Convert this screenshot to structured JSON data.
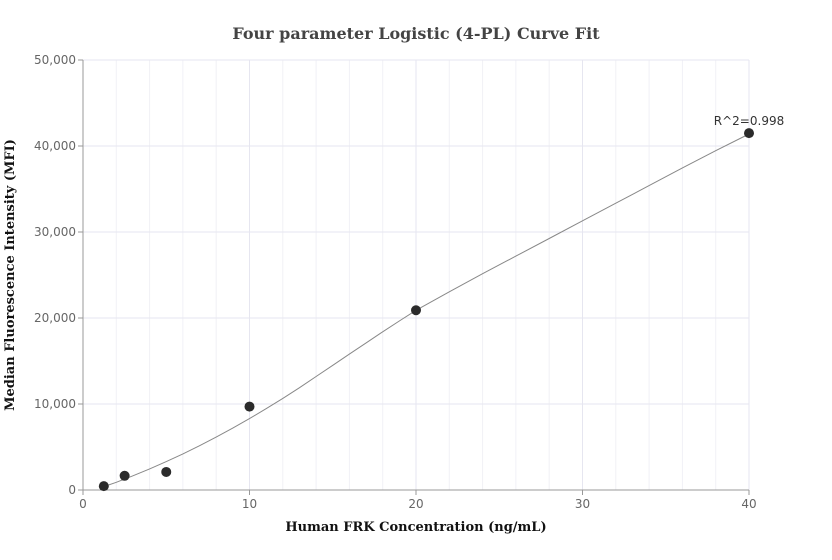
{
  "chart_data": {
    "type": "scatter",
    "title": "Four parameter Logistic (4-PL) Curve Fit",
    "xlabel": "Human FRK Concentration (ng/mL)",
    "ylabel": "Median Fluorescence Intensity (MFI)",
    "xlim": [
      0,
      40
    ],
    "ylim": [
      0,
      50000
    ],
    "x_ticks": [
      0,
      10,
      20,
      30,
      40
    ],
    "y_ticks": [
      0,
      10000,
      20000,
      30000,
      40000,
      50000
    ],
    "x_tick_labels": [
      "0",
      "10",
      "20",
      "30",
      "40"
    ],
    "y_tick_labels": [
      "0",
      "10,000",
      "20,000",
      "30,000",
      "40,000",
      "50,000"
    ],
    "grid": true,
    "series": [
      {
        "points": [
          {
            "x": 1.25,
            "y": 450
          },
          {
            "x": 2.5,
            "y": 1650
          },
          {
            "x": 5,
            "y": 2100
          },
          {
            "x": 10,
            "y": 9700
          },
          {
            "x": 20,
            "y": 20900
          },
          {
            "x": 40,
            "y": 41500
          }
        ]
      }
    ],
    "fit_curve": {
      "x": [
        1.25,
        2,
        3,
        4,
        5,
        6,
        7,
        8,
        9,
        10,
        11,
        12,
        13,
        14,
        15,
        16,
        17,
        18,
        19,
        20,
        22,
        24,
        26,
        28,
        30,
        32,
        34,
        36,
        38,
        40
      ],
      "y": [
        400,
        900,
        1650,
        2450,
        3300,
        4200,
        5150,
        6150,
        7200,
        8300,
        9450,
        10650,
        11900,
        13200,
        14500,
        15800,
        17100,
        18400,
        19650,
        20900,
        23050,
        25150,
        27200,
        29250,
        31300,
        33350,
        35400,
        37450,
        39450,
        41400
      ]
    },
    "annotations": [
      {
        "text": "R^2=0.998",
        "x": 40,
        "y": 41500
      }
    ],
    "colors": {
      "point": "#2b2b2b",
      "curve": "#888888",
      "grid": "#e6e6f0",
      "axis": "#999999"
    }
  }
}
